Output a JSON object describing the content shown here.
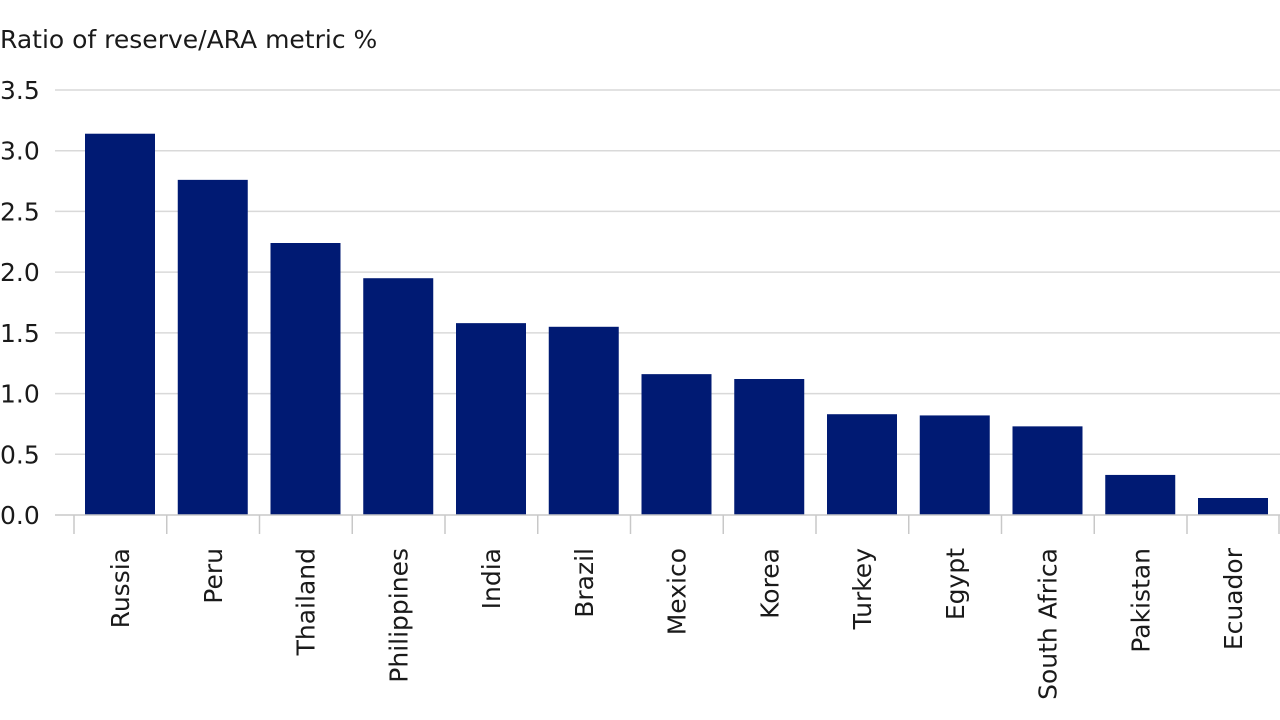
{
  "chart_data": {
    "type": "bar",
    "title": "",
    "ylabel": "Ratio of reserve/ARA metric %",
    "xlabel": "",
    "categories": [
      "Russia",
      "Peru",
      "Thailand",
      "Philippines",
      "India",
      "Brazil",
      "Mexico",
      "Korea",
      "Turkey",
      "Egypt",
      "South Africa",
      "Pakistan",
      "Ecuador"
    ],
    "values": [
      3.14,
      2.76,
      2.24,
      1.95,
      1.58,
      1.55,
      1.16,
      1.12,
      0.83,
      0.82,
      0.73,
      0.33,
      0.14
    ],
    "ylim": [
      0,
      3.5
    ],
    "yticks": [
      "0.0",
      "0.5",
      "1.0",
      "1.5",
      "2.0",
      "2.5",
      "3.0",
      "3.5"
    ],
    "grid": true,
    "legend": "none",
    "colors": {
      "bar": "#001a73"
    }
  }
}
